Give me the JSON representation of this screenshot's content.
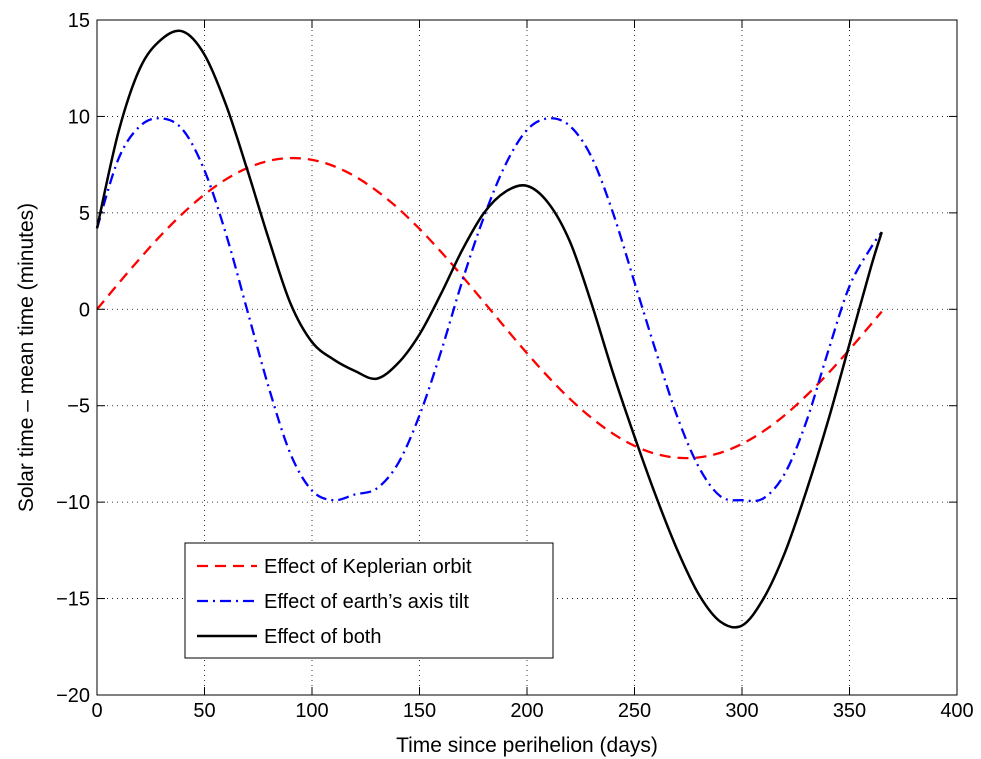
{
  "chart_data": {
    "type": "line",
    "title": "",
    "xlabel": "Time since perihelion (days)",
    "ylabel": "Solar time – mean time (minutes)",
    "xlim": [
      0,
      400
    ],
    "ylim": [
      -20,
      15
    ],
    "xticks": [
      0,
      50,
      100,
      150,
      200,
      250,
      300,
      350,
      400
    ],
    "yticks": [
      -20,
      -15,
      -10,
      -5,
      0,
      5,
      10,
      15
    ],
    "xtick_labels": [
      "0",
      "50",
      "100",
      "150",
      "200",
      "250",
      "300",
      "350",
      "400"
    ],
    "ytick_labels": [
      "−20",
      "−15",
      "−10",
      "−5",
      "0",
      "5",
      "10",
      "15"
    ],
    "grid": true,
    "legend_position": "lower-left",
    "x": [
      0,
      10,
      20,
      30,
      40,
      50,
      60,
      70,
      80,
      90,
      100,
      110,
      120,
      130,
      140,
      150,
      160,
      170,
      180,
      190,
      200,
      210,
      220,
      230,
      240,
      250,
      260,
      270,
      280,
      290,
      300,
      310,
      320,
      330,
      340,
      350,
      360,
      365
    ],
    "series": [
      {
        "name": "Effect of Keplerian orbit",
        "color": "#ff0000",
        "style": "dashed",
        "values": [
          0.0,
          1.34,
          2.64,
          3.87,
          4.98,
          5.95,
          6.74,
          7.33,
          7.7,
          7.84,
          7.75,
          7.43,
          6.89,
          6.15,
          5.24,
          4.17,
          2.98,
          1.7,
          0.37,
          -0.97,
          -2.28,
          -3.52,
          -4.65,
          -5.63,
          -6.45,
          -7.08,
          -7.5,
          -7.7,
          -7.68,
          -7.44,
          -6.98,
          -6.32,
          -5.48,
          -4.47,
          -3.33,
          -2.09,
          -0.78,
          -0.12
        ]
      },
      {
        "name": "Effect of earth’s axis tilt",
        "color": "#0000ff",
        "style": "dashdot",
        "values": [
          4.2,
          7.8,
          9.5,
          9.9,
          9.3,
          7.2,
          3.9,
          -0.1,
          -4.1,
          -7.5,
          -9.4,
          -9.9,
          -9.6,
          -9.3,
          -8.0,
          -5.5,
          -2.2,
          1.5,
          4.8,
          7.5,
          9.3,
          9.9,
          9.5,
          7.9,
          5.0,
          1.4,
          -2.2,
          -5.6,
          -8.2,
          -9.7,
          -9.9,
          -9.8,
          -8.5,
          -5.8,
          -2.2,
          1.2,
          3.2,
          4.0
        ]
      },
      {
        "name": "Effect of both",
        "color": "#000000",
        "style": "solid",
        "values": [
          4.2,
          9.2,
          12.5,
          14.0,
          14.4,
          13.2,
          10.6,
          7.2,
          3.6,
          0.3,
          -1.7,
          -2.6,
          -3.2,
          -3.6,
          -2.8,
          -1.3,
          0.8,
          3.1,
          5.0,
          6.1,
          6.4,
          5.5,
          3.5,
          0.3,
          -3.3,
          -6.6,
          -9.7,
          -12.5,
          -14.8,
          -16.2,
          -16.4,
          -15.0,
          -12.6,
          -9.4,
          -5.8,
          -1.8,
          2.2,
          4.0
        ]
      }
    ]
  }
}
